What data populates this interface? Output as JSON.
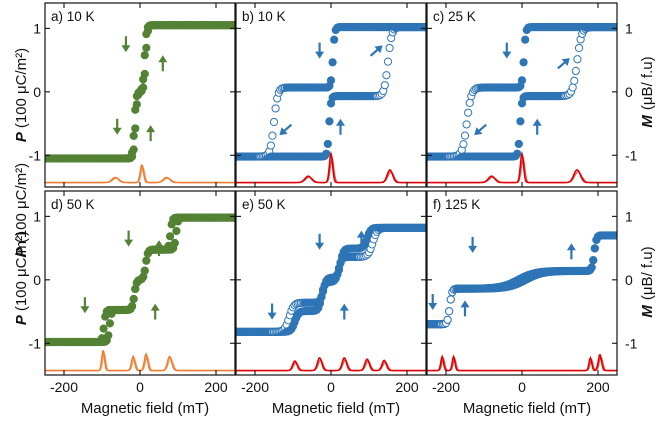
{
  "figure": {
    "shared_x": {
      "label": "Magnetic field (mT)",
      "range": [
        -250,
        250
      ],
      "ticks": [
        -200,
        0,
        200
      ],
      "tick_labels": [
        "-200",
        "0",
        "200"
      ]
    },
    "left_axis": {
      "label_symbol": "P",
      "label_unit": "(100 μC/m²)",
      "range": [
        -1.5,
        1.4
      ],
      "ticks": [
        -1,
        0,
        1
      ],
      "tick_labels": [
        "-1",
        "0",
        "1"
      ]
    },
    "right_axis": {
      "label_symbol": "M",
      "label_unit": "(μB/ f.u)",
      "range": [
        -1.5,
        1.4
      ],
      "ticks": [
        -1,
        0,
        1
      ],
      "tick_labels": [
        "-1",
        "0",
        "1"
      ]
    }
  },
  "chart_data": [
    {
      "type": "scatter",
      "panel": "a",
      "label": "a) 10 K",
      "quantity": "P",
      "color": "#548235",
      "marker": "filled",
      "xlim": [
        -250,
        250
      ],
      "ylim": [
        -1.5,
        1.4
      ],
      "loop": {
        "sat": 1.05,
        "steps": [
          [
            -15,
            0.22,
            5
          ],
          [
            12,
            0.22,
            5
          ]
        ],
        "tail": 0.4
      },
      "arrows": [
        {
          "x": -37,
          "y": 0.75,
          "dir": "down"
        },
        {
          "x": 60,
          "y": 0.45,
          "dir": "up"
        },
        {
          "x": -60,
          "y": -0.55,
          "dir": "down"
        },
        {
          "x": 28,
          "y": -0.65,
          "dir": "up"
        }
      ],
      "peaks": {
        "color": "#ED7D31",
        "base": -1.43,
        "items": [
          [
            -65,
            0.08,
            12
          ],
          [
            5,
            0.28,
            6
          ],
          [
            70,
            0.08,
            12
          ]
        ]
      }
    },
    {
      "type": "scatter",
      "panel": "b",
      "label": "b) 10 K",
      "quantity": "M",
      "color": "#2E75B6",
      "marker": "filled+open",
      "xlim": [
        -250,
        250
      ],
      "ylim": [
        -1.5,
        1.4
      ],
      "loop": {
        "sat": 1.02,
        "steps": [
          [
            -5,
            0.35,
            5
          ],
          [
            150,
            0.4,
            10
          ]
        ],
        "tail": 0.55
      },
      "arrows": [
        {
          "x": -30,
          "y": 0.65,
          "dir": "down"
        },
        {
          "x": 120,
          "y": 0.65,
          "dir": "up-right"
        },
        {
          "x": -120,
          "y": -0.6,
          "dir": "down-left"
        },
        {
          "x": 25,
          "y": -0.55,
          "dir": "up"
        }
      ],
      "peaks": {
        "color": "#E00000",
        "base": -1.43,
        "items": [
          [
            -60,
            0.1,
            12
          ],
          [
            0,
            0.45,
            6
          ],
          [
            155,
            0.2,
            10
          ]
        ]
      }
    },
    {
      "type": "scatter",
      "panel": "c",
      "label": "c) 25 K",
      "quantity": "M",
      "color": "#2E75B6",
      "marker": "filled+open",
      "xlim": [
        -250,
        250
      ],
      "ylim": [
        -1.5,
        1.4
      ],
      "loop": {
        "sat": 1.02,
        "steps": [
          [
            -5,
            0.35,
            5
          ],
          [
            145,
            0.4,
            12
          ]
        ],
        "tail": 0.55
      },
      "arrows": [
        {
          "x": -40,
          "y": 0.65,
          "dir": "down"
        },
        {
          "x": 110,
          "y": 0.45,
          "dir": "up-right"
        },
        {
          "x": -110,
          "y": -0.6,
          "dir": "down-left"
        },
        {
          "x": 40,
          "y": -0.55,
          "dir": "up"
        }
      ],
      "peaks": {
        "color": "#E00000",
        "base": -1.43,
        "items": [
          [
            -80,
            0.1,
            12
          ],
          [
            0,
            0.45,
            6
          ],
          [
            145,
            0.2,
            12
          ]
        ]
      }
    },
    {
      "type": "scatter",
      "panel": "d",
      "label": "d) 50 K",
      "quantity": "P",
      "color": "#548235",
      "marker": "filled",
      "xlim": [
        -250,
        250
      ],
      "ylim": [
        -1.5,
        1.4
      ],
      "loop": {
        "sat": 0.98,
        "steps": [
          [
            -95,
            0.34,
            5
          ],
          [
            -15,
            0.32,
            6
          ],
          [
            15,
            0.32,
            6
          ],
          [
            80,
            0.34,
            5
          ]
        ],
        "tail": 0.3
      },
      "arrows": [
        {
          "x": -30,
          "y": 0.65,
          "dir": "down"
        },
        {
          "x": 50,
          "y": 0.5,
          "dir": "up"
        },
        {
          "x": -145,
          "y": -0.4,
          "dir": "down"
        },
        {
          "x": 40,
          "y": -0.5,
          "dir": "up"
        }
      ],
      "peaks": {
        "color": "#ED7D31",
        "base": -1.43,
        "items": [
          [
            -97,
            0.32,
            5
          ],
          [
            -18,
            0.22,
            6
          ],
          [
            16,
            0.26,
            6
          ],
          [
            78,
            0.22,
            8
          ]
        ]
      }
    },
    {
      "type": "scatter",
      "panel": "e",
      "label": "e) 50 K",
      "quantity": "M",
      "color": "#2E75B6",
      "marker": "filled+open",
      "xlim": [
        -250,
        250
      ],
      "ylim": [
        -1.5,
        1.4
      ],
      "loop": {
        "sat": 0.82,
        "steps": [
          [
            -95,
            0.25,
            10
          ],
          [
            -25,
            0.35,
            8
          ],
          [
            20,
            0.3,
            8
          ],
          [
            110,
            0.35,
            12
          ]
        ],
        "tail": 0.6
      },
      "arrows": [
        {
          "x": -30,
          "y": 0.6,
          "dir": "down"
        },
        {
          "x": 80,
          "y": 0.65,
          "dir": "up"
        },
        {
          "x": -155,
          "y": -0.5,
          "dir": "down"
        },
        {
          "x": 35,
          "y": -0.5,
          "dir": "up"
        }
      ],
      "peaks": {
        "color": "#E00000",
        "base": -1.43,
        "items": [
          [
            -95,
            0.15,
            8
          ],
          [
            -30,
            0.2,
            8
          ],
          [
            35,
            0.2,
            8
          ],
          [
            95,
            0.18,
            8
          ],
          [
            140,
            0.16,
            8
          ]
        ]
      }
    },
    {
      "type": "scatter",
      "panel": "f",
      "label": "f) 125 K",
      "quantity": "M",
      "color": "#2E75B6",
      "marker": "filled+open",
      "xlim": [
        -250,
        250
      ],
      "ylim": [
        -1.5,
        1.4
      ],
      "loop": {
        "sat": 0.7,
        "steps": [
          [
            -190,
            0.4,
            6
          ],
          [
            -10,
            0.2,
            45
          ],
          [
            190,
            0.4,
            6
          ]
        ],
        "tail": 0.45
      },
      "arrows": [
        {
          "x": -130,
          "y": 0.55,
          "dir": "down"
        },
        {
          "x": 130,
          "y": 0.45,
          "dir": "up"
        },
        {
          "x": -235,
          "y": -0.35,
          "dir": "down"
        },
        {
          "x": -150,
          "y": -0.45,
          "dir": "up"
        }
      ],
      "peaks": {
        "color": "#E00000",
        "base": -1.43,
        "items": [
          [
            -210,
            0.22,
            5
          ],
          [
            -180,
            0.22,
            5
          ],
          [
            180,
            0.2,
            5
          ],
          [
            205,
            0.25,
            6
          ]
        ]
      }
    }
  ]
}
